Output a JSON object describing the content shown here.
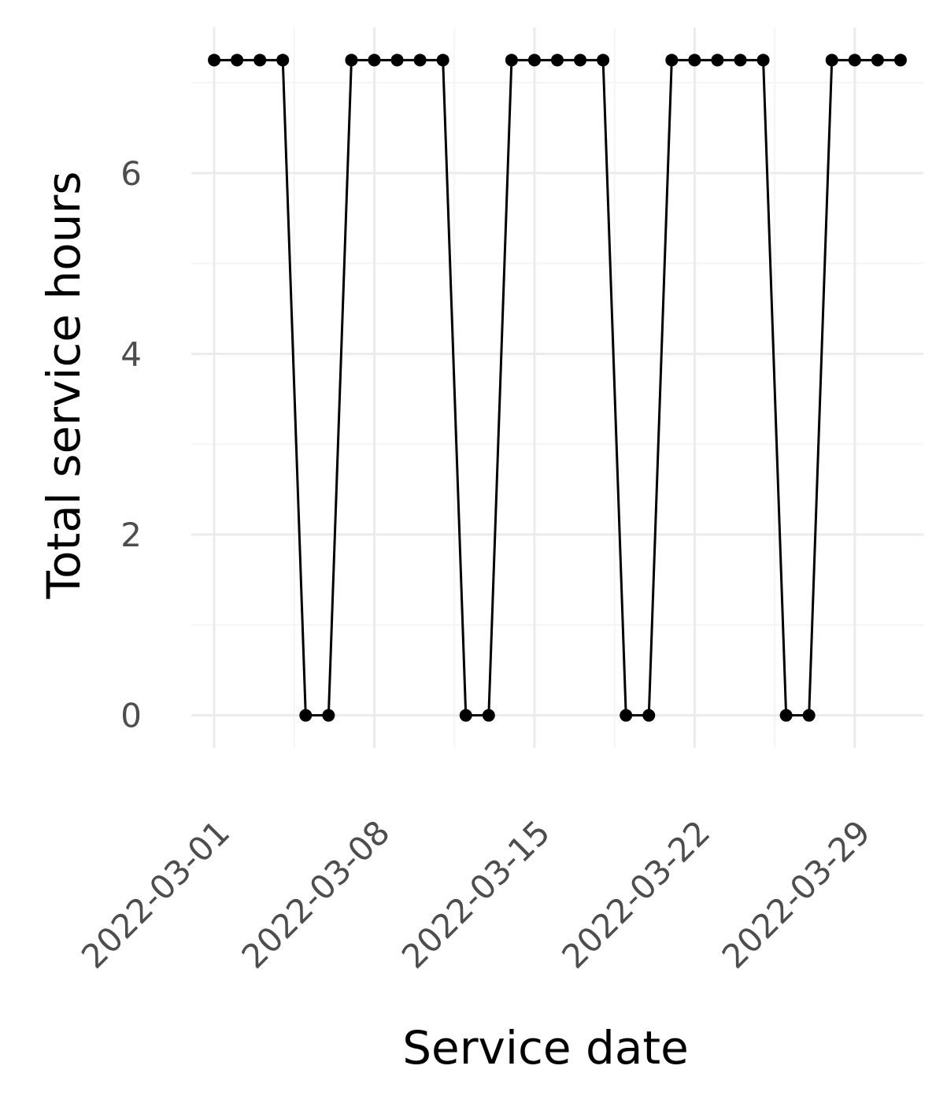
{
  "chart_data": {
    "type": "line",
    "title": "",
    "xlabel": "Service date",
    "ylabel": "Total service hours",
    "x_type": "date",
    "x": [
      "2022-03-01",
      "2022-03-02",
      "2022-03-03",
      "2022-03-04",
      "2022-03-05",
      "2022-03-06",
      "2022-03-07",
      "2022-03-08",
      "2022-03-09",
      "2022-03-10",
      "2022-03-11",
      "2022-03-12",
      "2022-03-13",
      "2022-03-14",
      "2022-03-15",
      "2022-03-16",
      "2022-03-17",
      "2022-03-18",
      "2022-03-19",
      "2022-03-20",
      "2022-03-21",
      "2022-03-22",
      "2022-03-23",
      "2022-03-24",
      "2022-03-25",
      "2022-03-26",
      "2022-03-27",
      "2022-03-28",
      "2022-03-29",
      "2022-03-30",
      "2022-03-31"
    ],
    "series": [
      {
        "values": [
          7.25,
          7.25,
          7.25,
          7.25,
          0,
          0,
          7.25,
          7.25,
          7.25,
          7.25,
          7.25,
          0,
          0,
          7.25,
          7.25,
          7.25,
          7.25,
          7.25,
          0,
          0,
          7.25,
          7.25,
          7.25,
          7.25,
          7.25,
          0,
          0,
          7.25,
          7.25,
          7.25,
          7.25
        ]
      }
    ],
    "xticks": [
      "2022-03-01",
      "2022-03-08",
      "2022-03-15",
      "2022-03-22",
      "2022-03-29"
    ],
    "xtick_labels": [
      "2022-03-01",
      "2022-03-08",
      "2022-03-15",
      "2022-03-22",
      "2022-03-29"
    ],
    "yticks": [
      0,
      2,
      4,
      6
    ],
    "ytick_labels": [
      "0",
      "2",
      "4",
      "6"
    ],
    "xlim": [
      "2022-02-28",
      "2022-04-01"
    ],
    "ylim": [
      -0.36,
      7.61
    ],
    "grid": true,
    "legend": "none",
    "colors": {
      "line": "#000000",
      "points": "#000000",
      "grid_major": "#ebebeb",
      "grid_minor": "#f5f5f5",
      "tick_text": "#4d4d4d",
      "title_text": "#000000"
    }
  }
}
